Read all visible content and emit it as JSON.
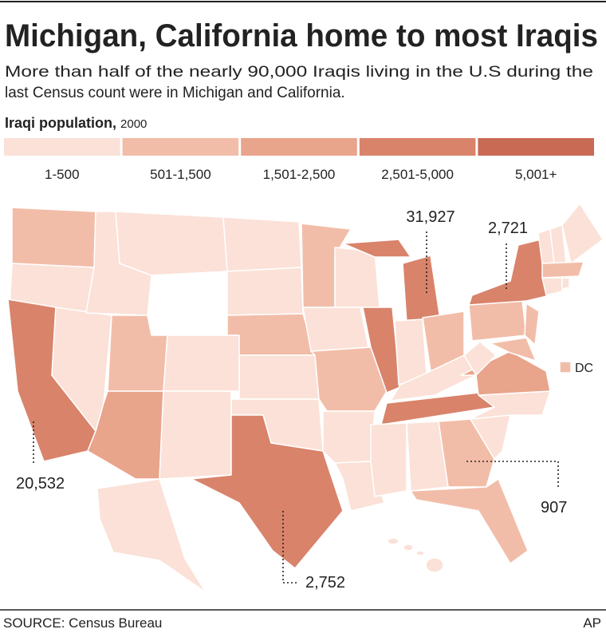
{
  "header": {
    "title": "Michigan, California home to most Iraqis",
    "subtitle_lines": [
      "More than half of the nearly 90,000 Iraqis living in the U.S during the",
      "last Census count were in Michigan and California."
    ]
  },
  "legend": {
    "title": "Iraqi population,",
    "year": "2000",
    "items": [
      {
        "label": "1-500",
        "color": "#fbe1d7"
      },
      {
        "label": "501-1,500",
        "color": "#f2bda8"
      },
      {
        "label": "1,501-2,500",
        "color": "#e9a48c"
      },
      {
        "label": "2,501-5,000",
        "color": "#d9836b"
      },
      {
        "label": "5,001+",
        "color": "#c96a55"
      }
    ]
  },
  "map": {
    "callouts": [
      "31,927",
      "2,721",
      "20,532",
      "2,752",
      "907"
    ],
    "dc_label": "DC"
  },
  "footer": {
    "source": "SOURCE: Census Bureau",
    "credit": "AP"
  }
}
